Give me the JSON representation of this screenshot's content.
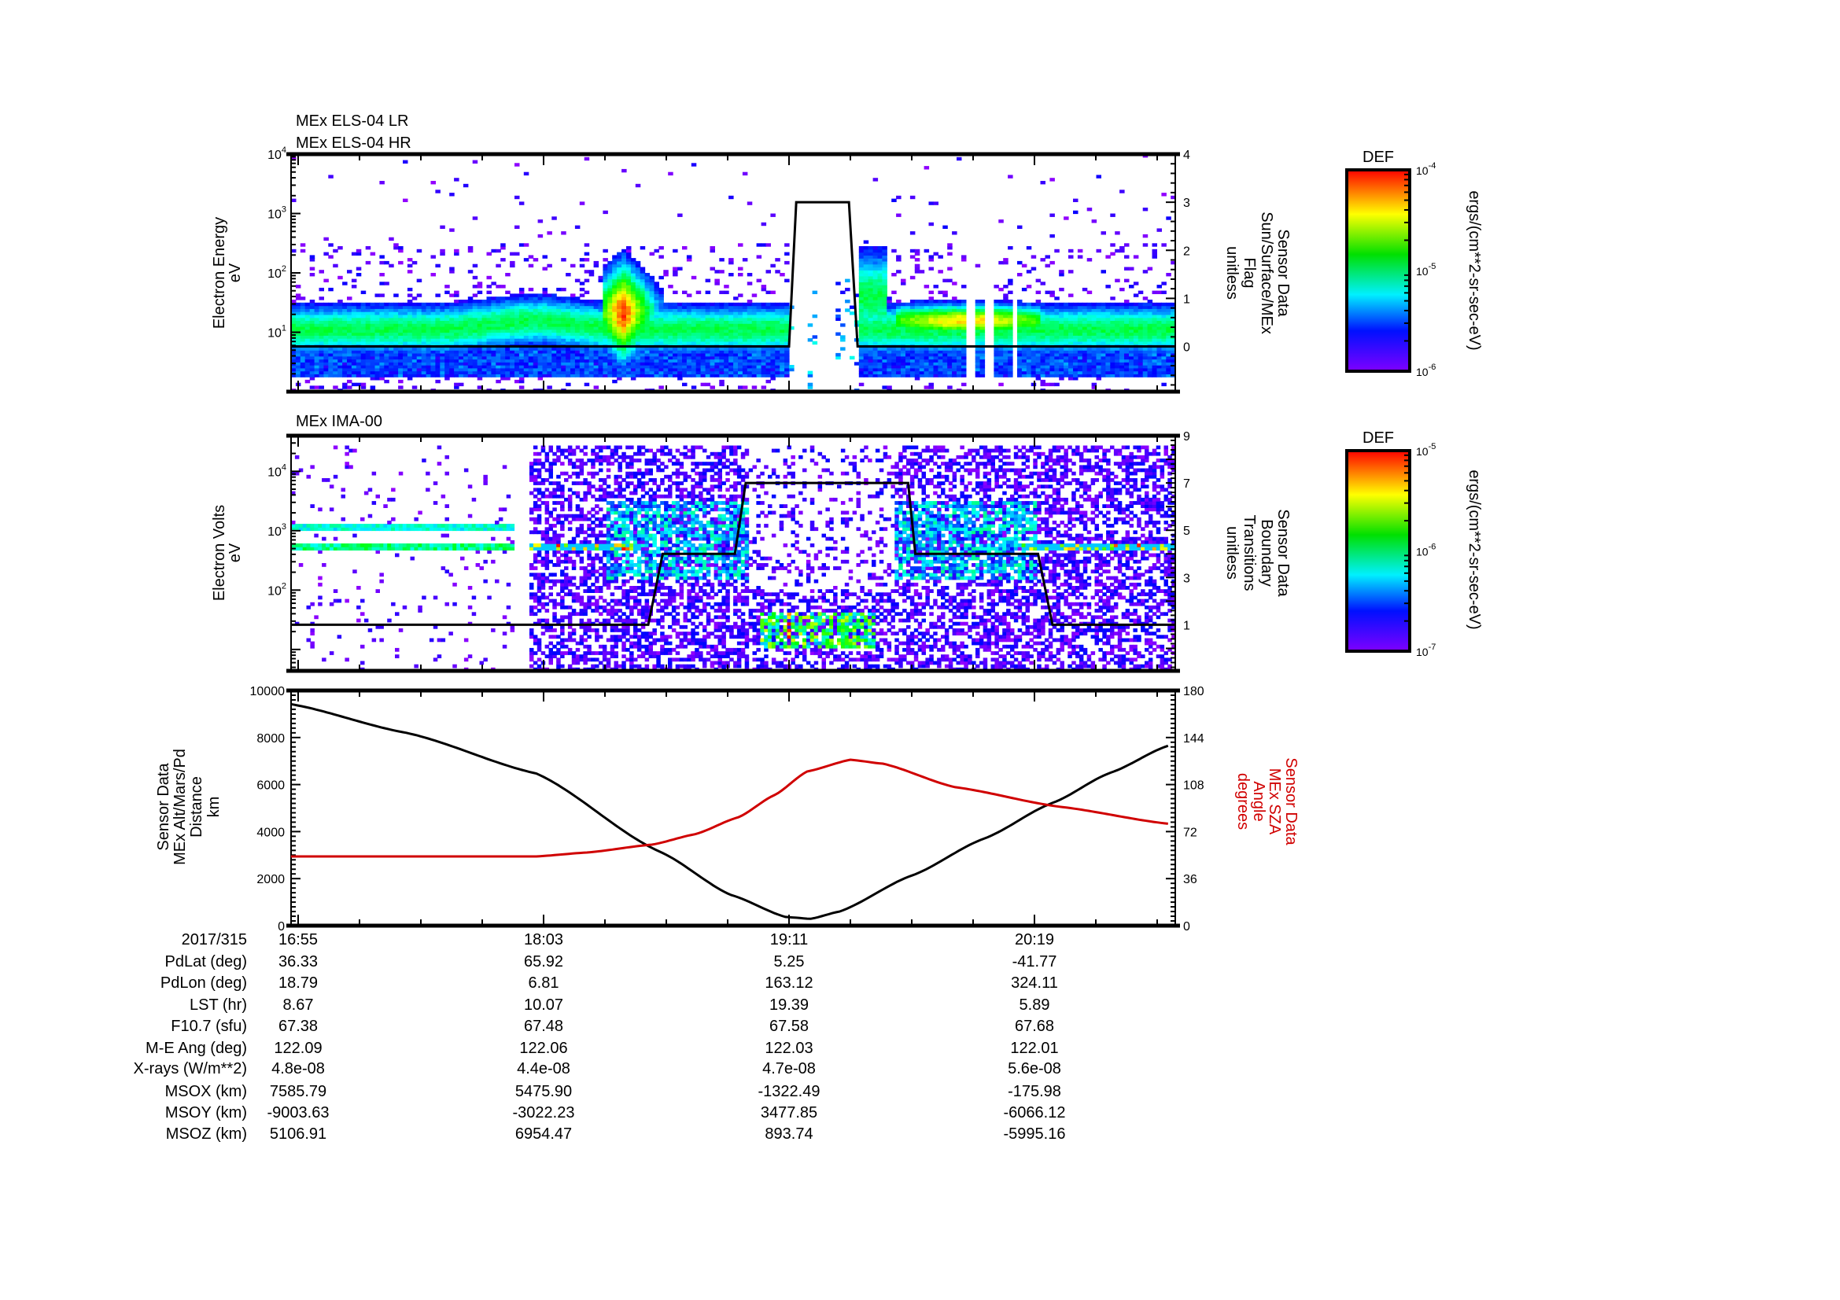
{
  "colors": {
    "altitude": "#000000",
    "sza": "#d00000",
    "flag": "#000000",
    "boundary": "#000000"
  },
  "chart_data": [
    {
      "type": "heatmap",
      "titles": [
        "MEx ELS-04 LR",
        "MEx ELS-04 HR"
      ],
      "ylabel": [
        "Electron Energy",
        "eV"
      ],
      "yscale": "log",
      "ylim_log10": [
        0,
        4
      ],
      "yticks": [
        {
          "base": "10",
          "exp": "1",
          "log": 1
        },
        {
          "base": "10",
          "exp": "2",
          "log": 2
        },
        {
          "base": "10",
          "exp": "3",
          "log": 3
        },
        {
          "base": "10",
          "exp": "4",
          "log": 4
        }
      ],
      "x_unit": "minutes after 16:55",
      "xlim": [
        -2,
        243
      ],
      "right_axis": {
        "label": [
          "Sensor Data",
          "Sun/Surface/MEx",
          "Flag",
          "unitless"
        ],
        "ylim": [
          -0.94,
          4
        ],
        "ticks": [
          "0",
          "1",
          "2",
          "3",
          "4"
        ],
        "series": {
          "name": "Sun/Surface/MEx Flag",
          "t": [
            -2,
            136,
            138,
            152.6,
            155,
            243
          ],
          "y": [
            0,
            0,
            3,
            3,
            0,
            0
          ]
        }
      },
      "colorbar": {
        "title": "DEF",
        "ticks": [
          {
            "base": "10",
            "exp": "-4"
          },
          {
            "base": "10",
            "exp": "-5"
          },
          {
            "base": "10",
            "exp": "-6"
          }
        ],
        "unit": "ergs/(cm**2-sr-sec-eV)"
      }
    },
    {
      "type": "heatmap",
      "titles": [
        "MEx IMA-00"
      ],
      "ylabel": [
        "Electron Volts",
        "eV"
      ],
      "yscale": "log",
      "ylim_log10": [
        0.64,
        4.6
      ],
      "yticks": [
        {
          "base": "10",
          "exp": "2",
          "log": 2
        },
        {
          "base": "10",
          "exp": "3",
          "log": 3
        },
        {
          "base": "10",
          "exp": "4",
          "log": 4
        }
      ],
      "x_unit": "minutes after 16:55",
      "xlim": [
        -2,
        243
      ],
      "right_axis": {
        "label": [
          "Sensor Data",
          "Boundary",
          "Transitions",
          "unitless"
        ],
        "ylim": [
          -0.95,
          9
        ],
        "ticks": [
          "1",
          "3",
          "5",
          "7",
          "9"
        ],
        "series": {
          "name": "Boundary Transitions",
          "t": [
            -2,
            97,
            101,
            121,
            124,
            169,
            171,
            205,
            209,
            243
          ],
          "y": [
            1,
            1,
            4,
            4,
            7,
            7,
            4,
            4,
            1,
            1
          ]
        }
      },
      "colorbar": {
        "title": "DEF",
        "ticks": [
          {
            "base": "10",
            "exp": "-5"
          },
          {
            "base": "10",
            "exp": "-6"
          },
          {
            "base": "10",
            "exp": "-7"
          }
        ],
        "unit": "ergs/(cm**2-sr-sec-eV)"
      }
    },
    {
      "type": "line",
      "ylabel": [
        "Sensor Data",
        "MEx Alt/Mars/Pd",
        "Distance",
        "km"
      ],
      "ylim": [
        0,
        10000
      ],
      "yticks": [
        "0",
        "2000",
        "4000",
        "6000",
        "8000",
        "10000"
      ],
      "y2label": [
        "Sensor Data",
        "MEx SZA",
        "Angle",
        "degrees"
      ],
      "y2lim": [
        0,
        180
      ],
      "y2ticks": [
        "0",
        "36",
        "72",
        "108",
        "144",
        "180"
      ],
      "xlim": [
        -2,
        243
      ],
      "series": [
        {
          "name": "MEx Alt/Mars/Pd Distance (km)",
          "axis": "left",
          "t": [
            -2,
            30,
            66,
            100,
            120,
            135,
            142,
            150,
            170,
            190,
            209,
            225,
            241
          ],
          "values": [
            9420,
            8200,
            6470,
            3160,
            1300,
            370,
            290,
            600,
            2130,
            3700,
            5220,
            6500,
            7650
          ]
        },
        {
          "name": "MEx SZA Angle (deg)",
          "axis": "right",
          "t": [
            -2,
            66,
            80,
            98,
            110,
            122,
            132,
            141,
            153,
            162,
            182,
            211,
            241
          ],
          "values": [
            53,
            53,
            56,
            62,
            70,
            83,
            100,
            118,
            127,
            124,
            106,
            91,
            78
          ]
        }
      ]
    }
  ],
  "table": {
    "header": {
      "label": "2017/315",
      "values": [
        "16:55",
        "18:03",
        "19:11",
        "20:19"
      ]
    },
    "rows": [
      {
        "label": "PdLat (deg)",
        "values": [
          "36.33",
          "65.92",
          "5.25",
          "-41.77"
        ]
      },
      {
        "label": "PdLon (deg)",
        "values": [
          "18.79",
          "6.81",
          "163.12",
          "324.11"
        ]
      },
      {
        "label": "LST (hr)",
        "values": [
          "8.67",
          "10.07",
          "19.39",
          "5.89"
        ]
      },
      {
        "label": "F10.7 (sfu)",
        "values": [
          "67.38",
          "67.48",
          "67.58",
          "67.68"
        ]
      },
      {
        "label": "M-E Ang (deg)",
        "values": [
          "122.09",
          "122.06",
          "122.03",
          "122.01"
        ]
      },
      {
        "label": "X-rays (W/m**2)",
        "values": [
          "4.8e-08",
          "4.4e-08",
          "4.7e-08",
          "5.6e-08"
        ]
      },
      {
        "label": "MSOX (km)",
        "values": [
          "7585.79",
          "5475.90",
          "-1322.49",
          "-175.98"
        ]
      },
      {
        "label": "MSOY (km)",
        "values": [
          "-9003.63",
          "-3022.23",
          "3477.85",
          "-6066.12"
        ]
      },
      {
        "label": "MSOZ (km)",
        "values": [
          "5106.91",
          "6954.47",
          "893.74",
          "-5995.16"
        ]
      }
    ]
  }
}
